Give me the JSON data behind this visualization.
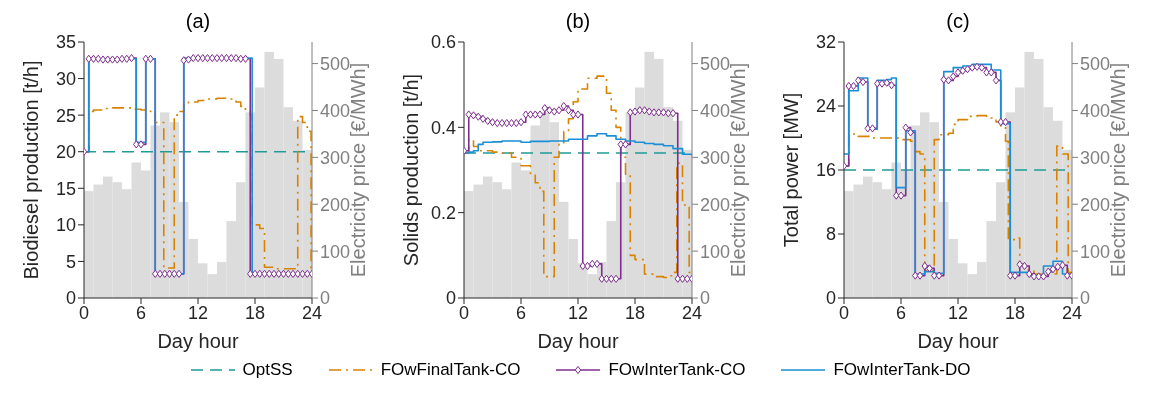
{
  "chart_data": [
    {
      "type": "step",
      "title": "(a)",
      "xlabel": "Day hour",
      "ylabel": "Biodiesel production [t/h]",
      "y2label": "Electricity price [€/MWh]",
      "xlim": [
        0,
        24
      ],
      "xticks": [
        0,
        6,
        12,
        18,
        24
      ],
      "ylim": [
        0,
        35
      ],
      "yticks": [
        0,
        5,
        10,
        15,
        20,
        25,
        30,
        35
      ],
      "y2lim": [
        0,
        546
      ],
      "y2ticks": [
        0,
        100,
        200,
        300,
        400,
        500
      ],
      "grid": false,
      "legend": "bottom",
      "series": [
        {
          "type": "bar",
          "axis": "y2",
          "color": "#dcdcdc",
          "x": [
            0.5,
            1.5,
            2.5,
            3.5,
            4.5,
            5.5,
            6.5,
            7.5,
            8.5,
            9.5,
            10.5,
            11.5,
            12.5,
            13.5,
            14.5,
            15.5,
            16.5,
            17.5,
            18.5,
            19.5,
            20.5,
            21.5,
            22.5,
            23.5
          ],
          "values": [
            228,
            242,
            259,
            247,
            232,
            289,
            272,
            368,
            396,
            375,
            205,
            126,
            74,
            51,
            77,
            164,
            247,
            396,
            449,
            525,
            510,
            407,
            378,
            316
          ]
        },
        {
          "name": "OptSS",
          "color": "#1f9c97",
          "line_style": "dashed",
          "marker": "none",
          "x": [
            0,
            24
          ],
          "values": [
            20,
            20
          ]
        },
        {
          "name": "FOwFinalTank-CO",
          "color": "#d98200",
          "line_style": "dashdot",
          "marker": "none",
          "x": [
            0,
            0.5,
            1,
            2,
            3,
            4,
            5,
            6,
            7,
            7.5,
            8.4,
            9.5,
            10,
            10.5,
            11,
            12,
            13,
            14,
            15,
            16,
            16.5,
            17,
            17.5,
            17.7,
            18.5,
            19,
            20,
            21,
            22,
            22.5,
            23,
            23.5,
            23.9,
            24
          ],
          "values": [
            20,
            25.5,
            25.7,
            25.9,
            26,
            26,
            25.8,
            25.7,
            25.5,
            24,
            4.1,
            25,
            25.5,
            26.7,
            26.8,
            27,
            27.2,
            27.3,
            27.2,
            26.8,
            26.2,
            25.6,
            25,
            10,
            9.5,
            4.2,
            4,
            4,
            4,
            24.8,
            24,
            22.8,
            4.1,
            4.1
          ]
        },
        {
          "name": "FOwInterTank-CO",
          "color": "#7e2f8e",
          "line_style": "solid",
          "marker": "diamond",
          "x": [
            0,
            0.5,
            1,
            1.5,
            2,
            2.5,
            3,
            3.5,
            4,
            4.5,
            5,
            5.5,
            6,
            6.5,
            7,
            7.5,
            8,
            8.5,
            9,
            9.5,
            10,
            10.5,
            11,
            11.5,
            12,
            12.5,
            13,
            13.5,
            14,
            14.5,
            15,
            15.5,
            16,
            16.5,
            17,
            17.5,
            18,
            18.5,
            19,
            19.5,
            20,
            20.5,
            21,
            21.5,
            22,
            22.5,
            23,
            23.5,
            24
          ],
          "values": [
            20,
            32.7,
            32.7,
            32.7,
            32.6,
            32.6,
            32.6,
            32.6,
            32.7,
            32.7,
            32.8,
            21,
            21,
            32.7,
            32.7,
            3.3,
            3.3,
            3.3,
            3.3,
            3.3,
            3.3,
            32.5,
            32.6,
            32.8,
            32.8,
            32.8,
            32.8,
            32.8,
            32.8,
            32.8,
            32.8,
            32.8,
            32.8,
            32.7,
            32.7,
            3.3,
            3.3,
            3.3,
            3.3,
            3.3,
            3.3,
            3.3,
            3.3,
            3.3,
            3.3,
            3.3,
            3.3,
            3.3,
            3.3
          ]
        },
        {
          "name": "FOwInterTank-DO",
          "color": "#1a8fd8",
          "line_style": "solid",
          "marker": "none",
          "x": [
            0,
            0.5,
            5.5,
            6.5,
            7.5,
            10.5,
            17.7,
            24
          ],
          "values": [
            20,
            32.7,
            21.3,
            32.7,
            3.3,
            32.8,
            3.3,
            3.3
          ]
        }
      ]
    },
    {
      "type": "step",
      "title": "(b)",
      "xlabel": "Day hour",
      "ylabel": "Solids production [t/h]",
      "y2label": "Electricity price [€/MWh]",
      "xlim": [
        0,
        24
      ],
      "xticks": [
        0,
        6,
        12,
        18,
        24
      ],
      "ylim": [
        0,
        0.6
      ],
      "yticks": [
        0,
        0.2,
        0.4,
        0.6
      ],
      "y2lim": [
        0,
        546
      ],
      "y2ticks": [
        0,
        100,
        200,
        300,
        400,
        500
      ],
      "grid": false,
      "legend": "bottom",
      "series": [
        {
          "type": "bar",
          "axis": "y2",
          "color": "#dcdcdc",
          "x": [
            0.5,
            1.5,
            2.5,
            3.5,
            4.5,
            5.5,
            6.5,
            7.5,
            8.5,
            9.5,
            10.5,
            11.5,
            12.5,
            13.5,
            14.5,
            15.5,
            16.5,
            17.5,
            18.5,
            19.5,
            20.5,
            21.5,
            22.5,
            23.5
          ],
          "values": [
            228,
            242,
            259,
            247,
            232,
            289,
            272,
            368,
            396,
            375,
            205,
            126,
            74,
            51,
            77,
            164,
            247,
            396,
            449,
            525,
            510,
            407,
            378,
            316
          ]
        },
        {
          "name": "OptSS",
          "color": "#1f9c97",
          "line_style": "dashed",
          "marker": "none",
          "x": [
            0,
            24
          ],
          "values": [
            0.34,
            0.34
          ]
        },
        {
          "name": "FOwFinalTank-CO",
          "color": "#d98200",
          "line_style": "dashdot",
          "marker": "none",
          "x": [
            0,
            0.5,
            1,
            1.5,
            2,
            3,
            4,
            5,
            6,
            7,
            7.5,
            8,
            8.4,
            9.5,
            10,
            10.5,
            11,
            11.5,
            12,
            13,
            14,
            15,
            15.5,
            16,
            16.5,
            17,
            17.5,
            18,
            19,
            20,
            21,
            21.5,
            22,
            22.4,
            23,
            23.7,
            24
          ],
          "values": [
            0.34,
            0.372,
            0.355,
            0.345,
            0.345,
            0.342,
            0.34,
            0.33,
            0.31,
            0.29,
            0.27,
            0.25,
            0.05,
            0.33,
            0.36,
            0.39,
            0.42,
            0.46,
            0.49,
            0.515,
            0.52,
            0.48,
            0.44,
            0.4,
            0.33,
            0.29,
            0.1,
            0.09,
            0.056,
            0.05,
            0.048,
            0.052,
            0.06,
            0.316,
            0.218,
            0.06,
            0.06
          ]
        },
        {
          "name": "FOwInterTank-CO",
          "color": "#7e2f8e",
          "line_style": "solid",
          "marker": "diamond",
          "x": [
            0,
            0.5,
            1,
            1.5,
            2,
            2.5,
            3,
            3.5,
            4,
            4.5,
            5,
            5.5,
            6,
            6.5,
            7,
            7.5,
            8,
            8.5,
            9,
            9.5,
            10,
            10.5,
            11,
            11.5,
            12,
            12.5,
            13,
            13.5,
            14,
            14.5,
            15,
            15.5,
            16,
            16.5,
            17,
            17.5,
            18,
            18.5,
            19,
            19.5,
            20,
            20.5,
            21,
            21.5,
            22,
            22.5,
            23,
            23.5,
            24
          ],
          "values": [
            0.345,
            0.43,
            0.428,
            0.425,
            0.42,
            0.415,
            0.412,
            0.41,
            0.41,
            0.41,
            0.41,
            0.41,
            0.412,
            0.43,
            0.43,
            0.43,
            0.43,
            0.445,
            0.44,
            0.437,
            0.44,
            0.45,
            0.44,
            0.43,
            0.43,
            0.075,
            0.075,
            0.08,
            0.08,
            0.045,
            0.045,
            0.045,
            0.045,
            0.36,
            0.36,
            0.435,
            0.437,
            0.44,
            0.44,
            0.437,
            0.435,
            0.435,
            0.435,
            0.433,
            0.433,
            0.045,
            0.045,
            0.045,
            0.045
          ]
        },
        {
          "name": "FOwInterTank-DO",
          "color": "#1a8fd8",
          "line_style": "solid",
          "marker": "none",
          "x": [
            0,
            0.5,
            1,
            1.5,
            2,
            3,
            4,
            5,
            6,
            7,
            8,
            9,
            10,
            11,
            12,
            13,
            14,
            15,
            16,
            17,
            18,
            19,
            20,
            21,
            22,
            23,
            24
          ],
          "values": [
            0.34,
            0.342,
            0.345,
            0.36,
            0.365,
            0.366,
            0.368,
            0.368,
            0.365,
            0.367,
            0.367,
            0.368,
            0.368,
            0.372,
            0.372,
            0.38,
            0.385,
            0.38,
            0.372,
            0.368,
            0.365,
            0.362,
            0.36,
            0.357,
            0.35,
            0.337,
            0.332
          ]
        }
      ]
    },
    {
      "type": "step",
      "title": "(c)",
      "xlabel": "Day hour",
      "ylabel": "Total power [MW]",
      "y2label": "Electricity price [€/MWh]",
      "xlim": [
        0,
        24
      ],
      "xticks": [
        0,
        6,
        12,
        18,
        24
      ],
      "ylim": [
        0,
        32
      ],
      "yticks": [
        0,
        8,
        16,
        24,
        32
      ],
      "y2lim": [
        0,
        546
      ],
      "y2ticks": [
        0,
        100,
        200,
        300,
        400,
        500
      ],
      "grid": false,
      "legend": "bottom",
      "series": [
        {
          "type": "bar",
          "axis": "y2",
          "color": "#dcdcdc",
          "x": [
            0.5,
            1.5,
            2.5,
            3.5,
            4.5,
            5.5,
            6.5,
            7.5,
            8.5,
            9.5,
            10.5,
            11.5,
            12.5,
            13.5,
            14.5,
            15.5,
            16.5,
            17.5,
            18.5,
            19.5,
            20.5,
            21.5,
            22.5,
            23.5
          ],
          "values": [
            228,
            242,
            259,
            247,
            232,
            289,
            272,
            368,
            396,
            375,
            205,
            126,
            74,
            51,
            77,
            164,
            247,
            396,
            449,
            525,
            510,
            407,
            378,
            316
          ]
        },
        {
          "name": "OptSS",
          "color": "#1f9c97",
          "line_style": "dashed",
          "marker": "none",
          "x": [
            0,
            24
          ],
          "values": [
            16,
            16
          ]
        },
        {
          "name": "FOwFinalTank-CO",
          "color": "#d98200",
          "line_style": "dashdot",
          "marker": "none",
          "x": [
            0,
            0.5,
            1.5,
            3,
            5,
            6,
            7,
            7.5,
            8,
            8.5,
            9.5,
            10,
            11,
            11.5,
            12,
            13,
            14,
            15,
            16,
            16.5,
            17,
            17.3,
            18,
            18.5,
            19,
            20,
            22.4,
            23,
            23.6,
            24
          ],
          "values": [
            16.5,
            20.5,
            20.2,
            20,
            20,
            19.8,
            19.6,
            18.3,
            18,
            3.4,
            19.8,
            20.4,
            20.6,
            21.7,
            22.3,
            22.7,
            22.8,
            22.5,
            22,
            21.5,
            19.6,
            7.3,
            7.5,
            4,
            3.5,
            3,
            19,
            18,
            3.2,
            3.2
          ]
        },
        {
          "name": "FOwInterTank-CO",
          "color": "#7e2f8e",
          "line_style": "solid",
          "marker": "diamond",
          "x": [
            0,
            0.5,
            1,
            1.5,
            2,
            2.5,
            3,
            3.5,
            4,
            4.5,
            5,
            5.5,
            6,
            6.5,
            7,
            7.5,
            8,
            8.5,
            9,
            9.5,
            10,
            10.5,
            11,
            11.5,
            12,
            12.5,
            13,
            13.5,
            14,
            14.5,
            15,
            15.5,
            16,
            16.5,
            17,
            17.5,
            18,
            18.5,
            19,
            19.5,
            20,
            20.5,
            21,
            21.5,
            22,
            22.5,
            23,
            23.5,
            24
          ],
          "values": [
            16.5,
            26.5,
            26.5,
            27.2,
            27,
            21.2,
            21.2,
            26.8,
            26.8,
            26.9,
            26.6,
            12.8,
            12.8,
            21.3,
            20.7,
            2.8,
            2.8,
            4,
            3.7,
            2.8,
            2.8,
            27.3,
            27.2,
            27.7,
            28.2,
            28.4,
            28.6,
            28.8,
            28.9,
            28.8,
            28.2,
            28.2,
            27.2,
            22,
            22,
            2.8,
            2.8,
            4.2,
            4,
            3,
            2.7,
            2.7,
            2.7,
            3.3,
            3.6,
            3.9,
            4.1,
            2.8,
            2.8
          ]
        },
        {
          "name": "FOwInterTank-DO",
          "color": "#1a8fd8",
          "line_style": "solid",
          "marker": "none",
          "x": [
            0,
            0.5,
            1.5,
            2.5,
            3.5,
            4.5,
            5,
            5.5,
            6.5,
            7.5,
            8.5,
            9.5,
            10.5,
            11.5,
            12.5,
            13.5,
            15.5,
            16.5,
            17.5,
            19.5,
            21,
            22,
            23,
            24
          ],
          "values": [
            18,
            25.9,
            27.5,
            21.1,
            27.2,
            27.3,
            27.5,
            13.8,
            20.9,
            3,
            3.3,
            3.1,
            28.3,
            28.8,
            29,
            29.2,
            28.5,
            21.8,
            3.2,
            2.8,
            4,
            4.6,
            3,
            3
          ]
        }
      ]
    }
  ]
}
